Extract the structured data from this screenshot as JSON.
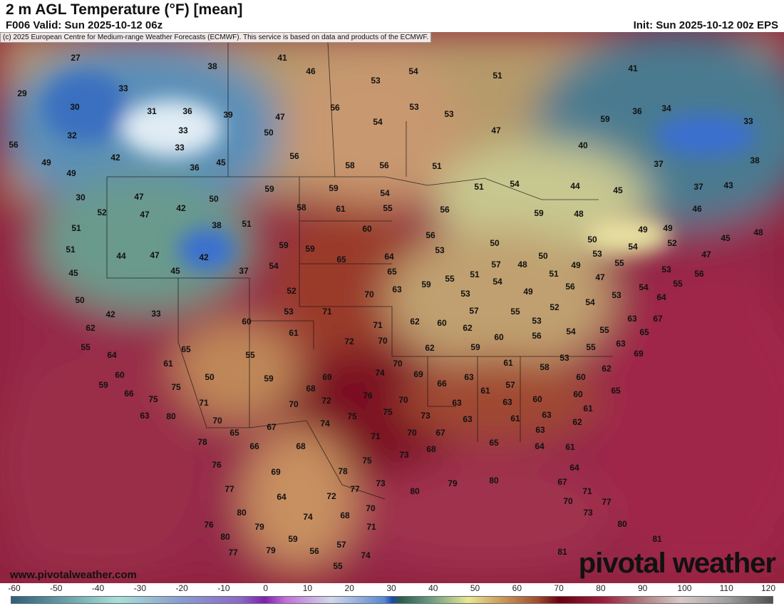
{
  "header": {
    "title": "2 m AGL Temperature (°F) [mean]",
    "valid": "F006 Valid: Sun 2025-10-12 06z",
    "init": "Init: Sun 2025-10-12 00z EPS"
  },
  "credit": "(c) 2025 European Centre for Medium-range Weather Forecasts (ECMWF). This service is based on data and products of the ECMWF.",
  "website": "www.pivotalweather.com",
  "logo": "pivotal weather",
  "colorbar": {
    "ticks": [
      "-60",
      "-50",
      "-40",
      "-30",
      "-20",
      "-10",
      "0",
      "10",
      "20",
      "30",
      "40",
      "50",
      "60",
      "70",
      "80",
      "90",
      "100",
      "110",
      "120"
    ],
    "unit": "°F"
  },
  "labels": [
    "27",
    "41",
    "46",
    "54",
    "51",
    "41",
    "38",
    "53",
    "29",
    "33",
    "56",
    "53",
    "53",
    "30",
    "31",
    "36",
    "39",
    "47",
    "54",
    "59",
    "36",
    "34",
    "33",
    "32",
    "33",
    "50",
    "47",
    "56",
    "33",
    "56",
    "40",
    "58",
    "56",
    "51",
    "37",
    "38",
    "42",
    "49",
    "36",
    "45",
    "49",
    "30",
    "47",
    "50",
    "59",
    "59",
    "54",
    "51",
    "54",
    "44",
    "45",
    "37",
    "43",
    "52",
    "47",
    "42",
    "58",
    "61",
    "55",
    "56",
    "59",
    "48",
    "46",
    "51",
    "38",
    "51",
    "60",
    "56",
    "50",
    "49",
    "49",
    "45",
    "48",
    "51",
    "44",
    "47",
    "42",
    "59",
    "59",
    "65",
    "64",
    "53",
    "50",
    "50",
    "53",
    "54",
    "52",
    "45",
    "45",
    "37",
    "54",
    "65",
    "57",
    "48",
    "51",
    "55",
    "49",
    "55",
    "47",
    "53",
    "56",
    "50",
    "52",
    "70",
    "63",
    "59",
    "54",
    "51",
    "56",
    "47",
    "53",
    "54",
    "49",
    "53",
    "55",
    "42",
    "33",
    "60",
    "53",
    "71",
    "62",
    "60",
    "57",
    "55",
    "52",
    "54",
    "63",
    "64",
    "67",
    "62",
    "61",
    "72",
    "71",
    "70",
    "62",
    "53",
    "54",
    "55",
    "65",
    "55",
    "64",
    "65",
    "62",
    "60",
    "56",
    "63",
    "59",
    "55",
    "61",
    "55",
    "53",
    "58",
    "61",
    "69",
    "60",
    "50",
    "59",
    "69",
    "74",
    "70",
    "69",
    "63",
    "60",
    "62",
    "59",
    "75",
    "68",
    "66",
    "61",
    "57",
    "60",
    "60",
    "65",
    "66",
    "75",
    "71",
    "70",
    "72",
    "76",
    "70",
    "63",
    "63",
    "61",
    "63",
    "80",
    "70",
    "75",
    "75",
    "73",
    "63",
    "61",
    "63",
    "62",
    "65",
    "67",
    "74",
    "71",
    "70",
    "67",
    "63",
    "78",
    "66",
    "68",
    "73",
    "68",
    "64",
    "65",
    "61",
    "76",
    "69",
    "75",
    "78",
    "64",
    "77",
    "64",
    "72",
    "77",
    "73",
    "80",
    "79",
    "80",
    "67",
    "71",
    "80",
    "74",
    "68",
    "70",
    "70",
    "73",
    "77",
    "76",
    "79",
    "71",
    "80",
    "80",
    "59",
    "57",
    "74",
    "81",
    "77",
    "79",
    "56",
    "81",
    "55"
  ]
}
